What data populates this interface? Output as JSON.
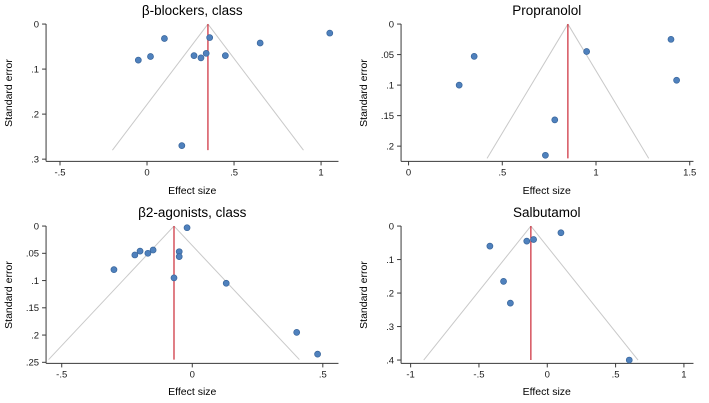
{
  "page": {
    "background": "#ffffff"
  },
  "colors": {
    "point_fill": "#4f81bd",
    "point_stroke": "#38659b",
    "pooled_line": "#cc2936",
    "funnel_line": "#c9c9c9",
    "axis": "#3a3a3a",
    "text": "#1a1a1a"
  },
  "chart_data": [
    {
      "type": "scatter",
      "subtype": "funnel-plot",
      "title": "β-blockers, class",
      "xlabel": "Effect size",
      "ylabel": "Standard error",
      "xlim": [
        -0.58,
        1.1
      ],
      "ylim": [
        0,
        0.305
      ],
      "y_inverted": true,
      "grid": false,
      "legend": "none",
      "xticks": [
        -0.5,
        0,
        0.5,
        1
      ],
      "xtick_labels": [
        "-.5",
        "0",
        ".5",
        "1"
      ],
      "yticks": [
        0,
        0.1,
        0.2,
        0.3
      ],
      "ytick_labels": [
        "0",
        ".1",
        ".2",
        ".3"
      ],
      "pooled_effect": 0.35,
      "funnel_max_se": 0.28,
      "funnel_slope": 1.96,
      "points": [
        [
          -0.05,
          0.08
        ],
        [
          0.02,
          0.072
        ],
        [
          0.1,
          0.032
        ],
        [
          0.27,
          0.07
        ],
        [
          0.31,
          0.075
        ],
        [
          0.34,
          0.065
        ],
        [
          0.36,
          0.03
        ],
        [
          0.45,
          0.07
        ],
        [
          0.65,
          0.042
        ],
        [
          1.05,
          0.02
        ],
        [
          0.2,
          0.27
        ]
      ]
    },
    {
      "type": "scatter",
      "subtype": "funnel-plot",
      "title": "Propranolol",
      "xlabel": "Effect size",
      "ylabel": "Standard error",
      "xlim": [
        -0.04,
        1.52
      ],
      "ylim": [
        0,
        0.225
      ],
      "y_inverted": true,
      "grid": false,
      "legend": "none",
      "xticks": [
        0,
        0.5,
        1,
        1.5
      ],
      "xtick_labels": [
        "0",
        ".5",
        "1",
        "1.5"
      ],
      "yticks": [
        0,
        0.05,
        0.1,
        0.15,
        0.2
      ],
      "ytick_labels": [
        "0",
        ".05",
        ".1",
        ".15",
        ".2"
      ],
      "pooled_effect": 0.85,
      "funnel_max_se": 0.22,
      "funnel_slope": 1.96,
      "points": [
        [
          0.27,
          0.1
        ],
        [
          0.35,
          0.053
        ],
        [
          0.95,
          0.045
        ],
        [
          1.4,
          0.025
        ],
        [
          1.43,
          0.092
        ],
        [
          0.78,
          0.157
        ],
        [
          0.73,
          0.215
        ]
      ]
    },
    {
      "type": "scatter",
      "subtype": "funnel-plot",
      "title": "β2-agonists, class",
      "xlabel": "Effect size",
      "ylabel": "Standard error",
      "xlim": [
        -0.56,
        0.56
      ],
      "ylim": [
        0,
        0.252
      ],
      "y_inverted": true,
      "grid": false,
      "legend": "none",
      "xticks": [
        -0.5,
        0,
        0.5
      ],
      "xtick_labels": [
        "-.5",
        "0",
        ".5"
      ],
      "yticks": [
        0,
        0.05,
        0.1,
        0.15,
        0.2,
        0.25
      ],
      "ytick_labels": [
        "0",
        ".05",
        ".1",
        ".15",
        ".2",
        ".25"
      ],
      "pooled_effect": -0.07,
      "funnel_max_se": 0.245,
      "funnel_slope": 1.96,
      "points": [
        [
          -0.02,
          0.003
        ],
        [
          -0.15,
          0.044
        ],
        [
          -0.17,
          0.05
        ],
        [
          -0.2,
          0.046
        ],
        [
          -0.22,
          0.053
        ],
        [
          -0.3,
          0.08
        ],
        [
          -0.05,
          0.047
        ],
        [
          -0.05,
          0.056
        ],
        [
          -0.07,
          0.095
        ],
        [
          0.13,
          0.105
        ],
        [
          0.4,
          0.195
        ],
        [
          0.48,
          0.235
        ]
      ]
    },
    {
      "type": "scatter",
      "subtype": "funnel-plot",
      "title": "Salbutamol",
      "xlabel": "Effect size",
      "ylabel": "Standard error",
      "xlim": [
        -1.07,
        1.07
      ],
      "ylim": [
        0,
        0.41
      ],
      "y_inverted": true,
      "grid": false,
      "legend": "none",
      "xticks": [
        -1,
        -0.5,
        0,
        0.5,
        1
      ],
      "xtick_labels": [
        "-1",
        "-.5",
        "0",
        ".5",
        "1"
      ],
      "yticks": [
        0,
        0.1,
        0.2,
        0.3,
        0.4
      ],
      "ytick_labels": [
        "0",
        ".1",
        ".2",
        ".3",
        ".4"
      ],
      "pooled_effect": -0.12,
      "funnel_max_se": 0.4,
      "funnel_slope": 1.96,
      "points": [
        [
          -0.42,
          0.06
        ],
        [
          -0.15,
          0.045
        ],
        [
          -0.1,
          0.04
        ],
        [
          0.1,
          0.02
        ],
        [
          -0.32,
          0.165
        ],
        [
          -0.27,
          0.23
        ],
        [
          0.6,
          0.4
        ]
      ]
    }
  ]
}
